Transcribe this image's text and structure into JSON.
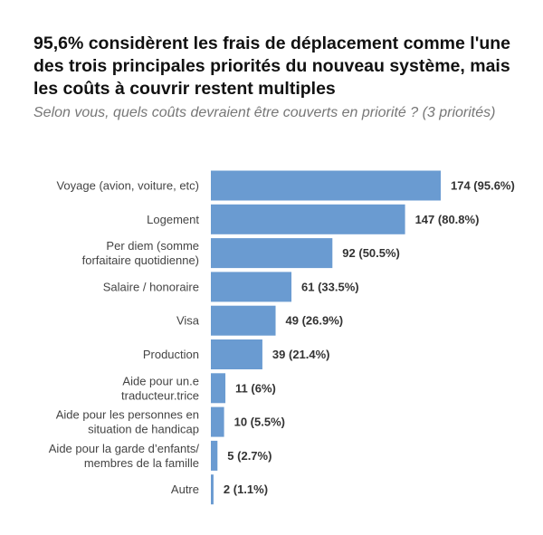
{
  "chart_data": {
    "type": "bar",
    "orientation": "horizontal",
    "title": "95,6% considèrent les frais de déplacement comme l'une des trois principales priorités du nouveau système, mais les coûts à couvrir restent multiples",
    "subtitle": "Selon vous, quels coûts devraient être couverts en priorité ? (3 priorités)",
    "categories": [
      [
        "Voyage (avion, voiture, etc)"
      ],
      [
        "Logement"
      ],
      [
        "Per diem (somme",
        "forfaitaire quotidienne)"
      ],
      [
        "Salaire / honoraire"
      ],
      [
        "Visa"
      ],
      [
        "Production"
      ],
      [
        "Aide pour un.e",
        "traducteur.trice"
      ],
      [
        "Aide pour les personnes en",
        "situation de handicap"
      ],
      [
        "Aide pour la garde d’enfants/",
        "membres de la famille"
      ],
      [
        "Autre"
      ]
    ],
    "values": [
      174,
      147,
      92,
      61,
      49,
      39,
      11,
      10,
      5,
      2
    ],
    "data_labels": [
      "174 (95.6%)",
      "147 (80.8%)",
      "92 (50.5%)",
      "61 (33.5%)",
      "49 (26.9%)",
      "39 (21.4%)",
      "11 (6%)",
      "10 (5.5%)",
      "5 (2.7%)",
      "2 (1.1%)"
    ],
    "xlim": [
      0,
      174
    ],
    "grid": false,
    "bar_color": "#6a9bd1"
  }
}
